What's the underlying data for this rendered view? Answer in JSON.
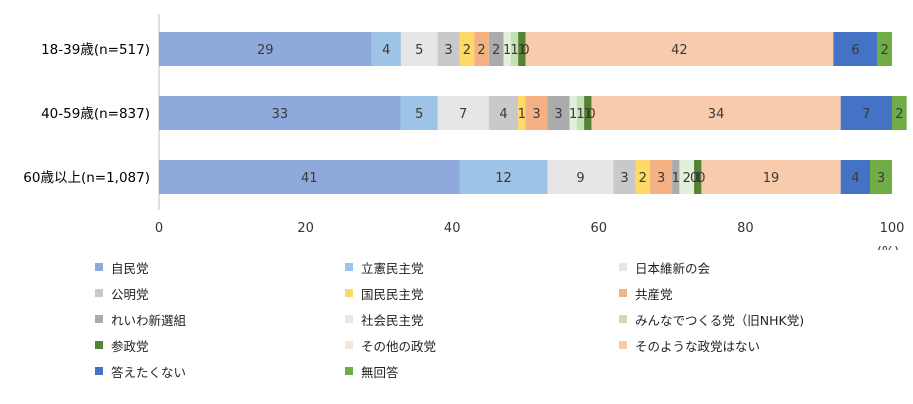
{
  "chart_data": {
    "type": "bar",
    "orientation": "horizontal",
    "stacked": true,
    "categories": [
      "18-39歳(n=517)",
      "40-59歳(n=837)",
      "60歳以上(n=1,087)"
    ],
    "x_ticks": [
      "0",
      "20",
      "40",
      "60",
      "80",
      "100"
    ],
    "xlim": [
      0,
      100
    ],
    "unit": "(%)",
    "grid": false,
    "legend_position": "bottom",
    "series": [
      {
        "name": "自民党",
        "color": "#8EA9DB",
        "values": [
          29,
          33,
          41
        ]
      },
      {
        "name": "立憲民主党",
        "color": "#9DC3E6",
        "values": [
          4,
          5,
          12
        ]
      },
      {
        "name": "日本維新の会",
        "color": "#E7E6E6",
        "values": [
          5,
          7,
          9
        ]
      },
      {
        "name": "公明党",
        "color": "#C9C9C9",
        "values": [
          3,
          4,
          3
        ]
      },
      {
        "name": "国民民主党",
        "color": "#FFD966",
        "values": [
          2,
          1,
          2
        ]
      },
      {
        "name": "共産党",
        "color": "#F4B183",
        "values": [
          2,
          3,
          3
        ]
      },
      {
        "name": "れいわ新選組",
        "color": "#ABABAB",
        "values": [
          2,
          3,
          1
        ]
      },
      {
        "name": "社会民主党",
        "color": "#E2F0D9",
        "values": [
          1,
          1,
          2
        ]
      },
      {
        "name": "みんなでつくる党（旧NHK党)",
        "color": "#C5E0B4",
        "values": [
          1,
          1,
          0
        ]
      },
      {
        "name": "参政党",
        "color": "#548235",
        "values": [
          1,
          1,
          1
        ]
      },
      {
        "name": "その他の政党",
        "color": "#FBE5D6",
        "values": [
          0,
          0,
          0
        ]
      },
      {
        "name": "そのような政党はない",
        "color": "#F8CBAD",
        "values": [
          42,
          34,
          19
        ]
      },
      {
        "name": "答えたくない",
        "color": "#4472C4",
        "values": [
          6,
          7,
          4
        ]
      },
      {
        "name": "無回答",
        "color": "#70AD47",
        "values": [
          2,
          2,
          3
        ]
      }
    ]
  }
}
